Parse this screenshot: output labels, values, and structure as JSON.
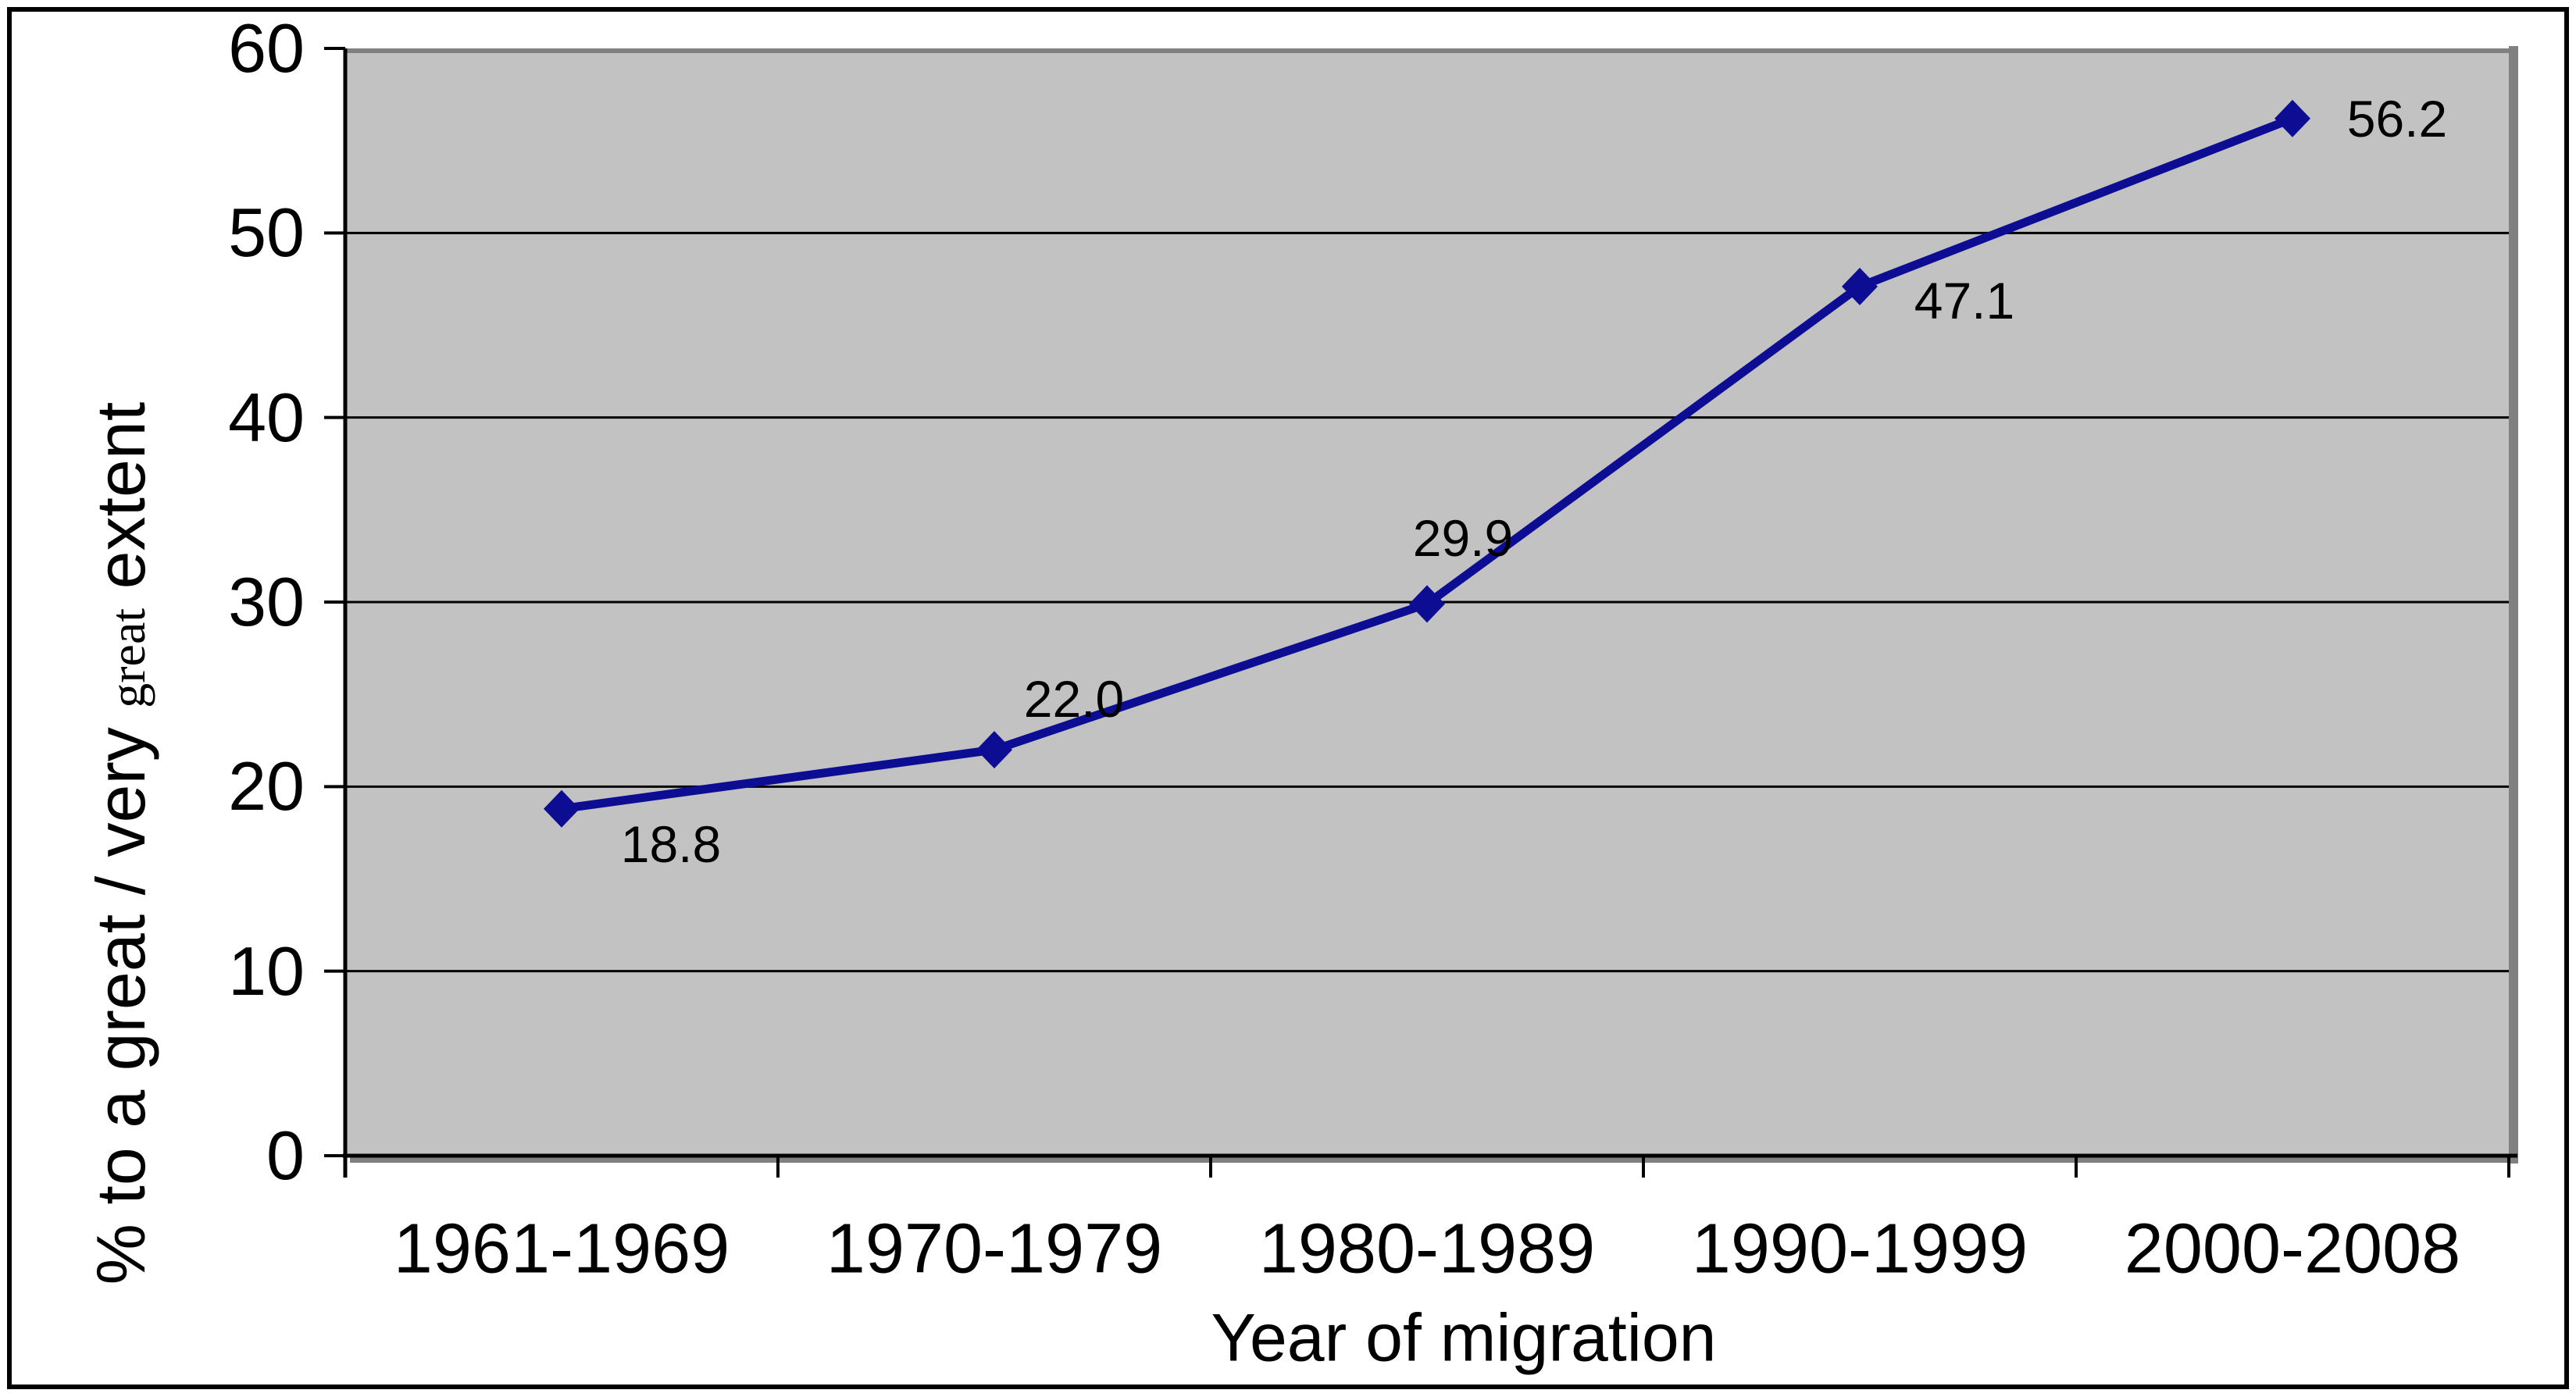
{
  "chart_data": {
    "type": "line",
    "title": "",
    "categories": [
      "1961-1969",
      "1970-1979",
      "1980-1989",
      "1990-1999",
      "2000-2008"
    ],
    "series": [
      {
        "name": "% to a great / very great extent",
        "values": [
          18.8,
          22.0,
          29.9,
          47.1,
          56.2
        ]
      }
    ],
    "data_labels": [
      "18.8",
      "22.0",
      "29.9",
      "47.1",
      "56.2"
    ],
    "xlabel": "Year of migration",
    "ylabel": {
      "lead": "% to a great / very ",
      "small_word": "great",
      "tail": " extent"
    },
    "ylim": [
      0,
      60
    ],
    "ytick_interval": 10,
    "ytick_labels": [
      "0",
      "10",
      "20",
      "30",
      "40",
      "50",
      "60"
    ],
    "grid": true,
    "legend_position": "none",
    "marker_shape": "diamond",
    "colors": {
      "line": "#0d0d94",
      "marker_fill": "#0d0d94",
      "plot_background": "#c2c2c2",
      "plot_shadow": "#808080",
      "gridline": "#000000",
      "axis": "#000000",
      "label_text": "#000000",
      "figure_background": "#ffffff",
      "figure_border": "#000000"
    }
  }
}
